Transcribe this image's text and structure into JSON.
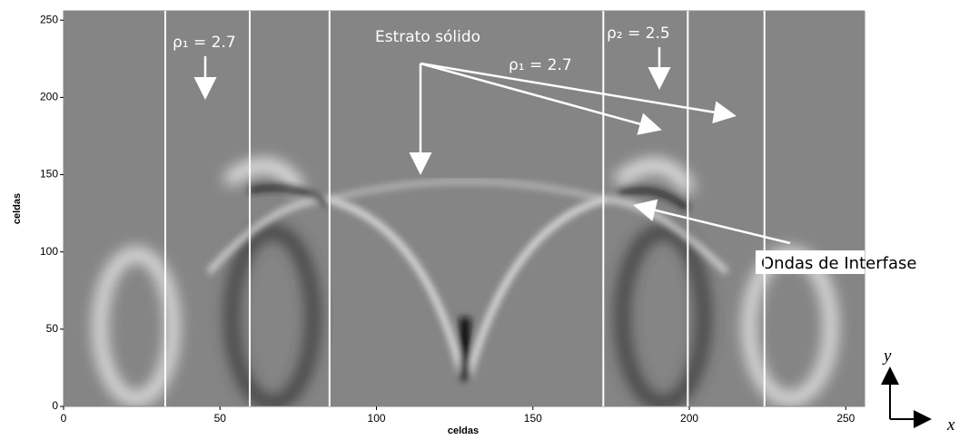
{
  "chart_data": {
    "type": "heatmap",
    "xlabel": "celdas",
    "ylabel": "celdas",
    "xlim": [
      0,
      256
    ],
    "ylim": [
      0,
      256
    ],
    "xticks": [
      0,
      50,
      100,
      150,
      200,
      250
    ],
    "yticks": [
      0,
      50,
      100,
      150,
      200,
      250
    ],
    "interfaces": [
      32.5,
      59.5,
      85,
      172.5,
      199.5,
      224
    ],
    "annotations": [
      "ρ₁ = 2.7",
      "Estrato  sólido",
      "ρ₁ = 2.7",
      "ρ₂ = 2.5",
      "Ondas de Interfase",
      "y",
      "x"
    ]
  }
}
